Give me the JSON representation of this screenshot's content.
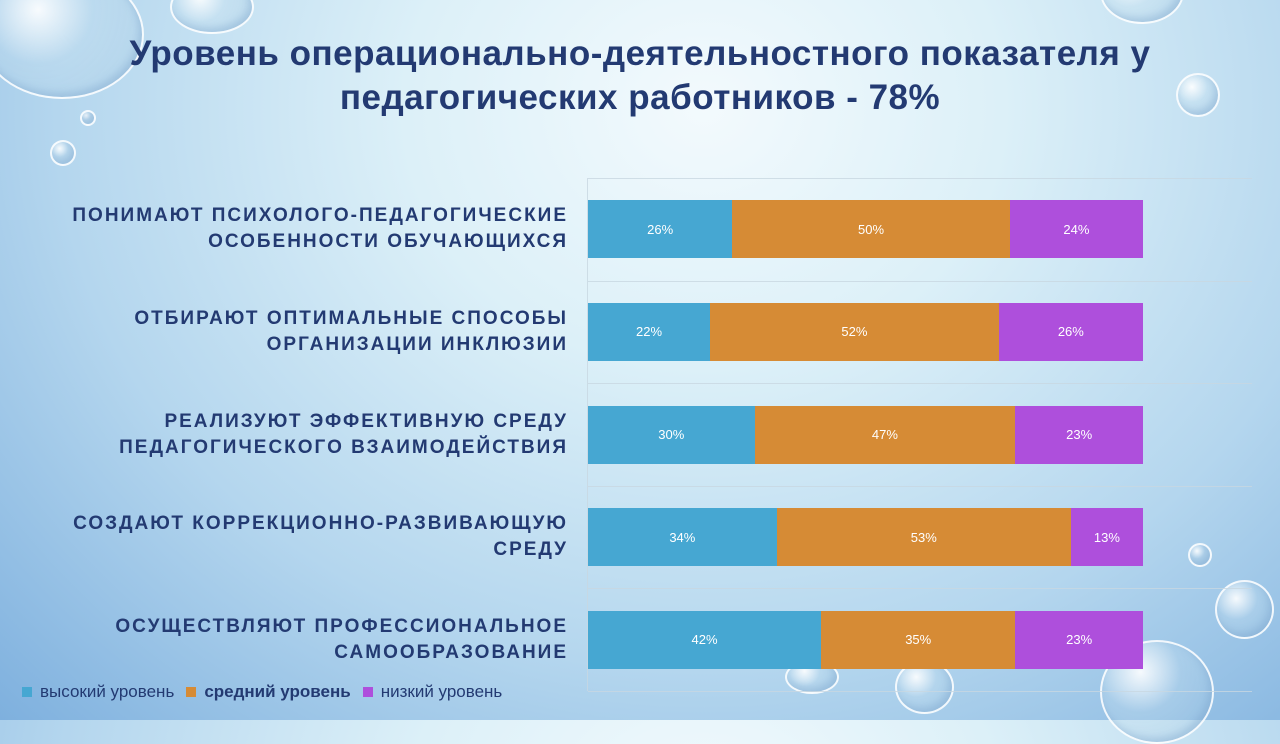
{
  "chart_data": {
    "type": "bar",
    "orientation": "horizontal-stacked-100",
    "title": "Уровень операционально-деятельностного показателя у педагогических работников -  78%",
    "categories": [
      "ПОНИМАЮТ ПСИХОЛОГО-ПЕДАГОГИЧЕСКИЕ ОСОБЕННОСТИ  ОБУЧАЮЩИХСЯ",
      "ОТБИРАЮТ ОПТИМАЛЬНЫЕ СПОСОБЫ ОРГАНИЗАЦИИ  ИНКЛЮЗИИ",
      "РЕАЛИЗУЮТ ЭФФЕКТИВНУЮ СРЕДУ ПЕДАГОГИЧЕСКОГО ВЗАИМОДЕЙСТВИЯ",
      "СОЗДАЮТ КОРРЕКЦИОННО-РАЗВИВАЮЩУЮ СРЕДУ",
      "ОСУЩЕСТВЛЯЮТ ПРОФЕССИОНАЛЬНОЕ САМООБРАЗОВАНИЕ"
    ],
    "series": [
      {
        "name": "высокий  уровень",
        "color": "#46a7d2",
        "values": [
          26,
          22,
          30,
          34,
          42
        ]
      },
      {
        "name": "средний уровень",
        "color": "#d68b35",
        "values": [
          50,
          52,
          47,
          53,
          35
        ]
      },
      {
        "name": "низкий  уровень",
        "color": "#ae4fdc",
        "values": [
          24,
          26,
          23,
          13,
          23
        ]
      }
    ],
    "xlim": [
      0,
      100
    ],
    "grid": true,
    "legend": "bottom-left"
  }
}
